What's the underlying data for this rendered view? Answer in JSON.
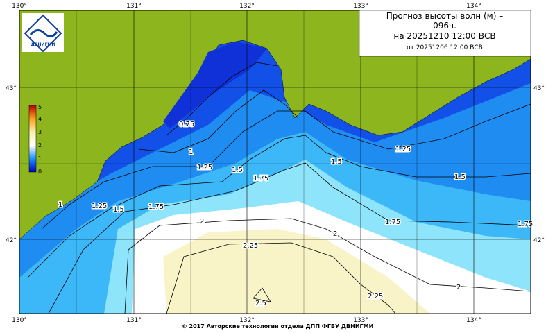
{
  "title": {
    "line1": "Прогноз высоты волн (м) –",
    "line2": "096ч.",
    "line3": "на 20251210 12:00 ВСВ",
    "line4": "от 20251206 12:00 ВСВ"
  },
  "logo": "ДВНИГМИ",
  "longitudes": [
    "130°",
    "131°",
    "132°",
    "133°",
    "134°"
  ],
  "latitudes": [
    "43°",
    "42°"
  ],
  "colorbar": [
    "0",
    "1",
    "2",
    "3",
    "4",
    "5"
  ],
  "contour_labels": [
    "0.75",
    "1",
    "1.25",
    "1.5",
    "1.75",
    "2",
    "2.25",
    "2.5"
  ],
  "footer": "© 2017 Авторские технологии отдела ДПП ФГБУ ДВНИГМИ"
}
